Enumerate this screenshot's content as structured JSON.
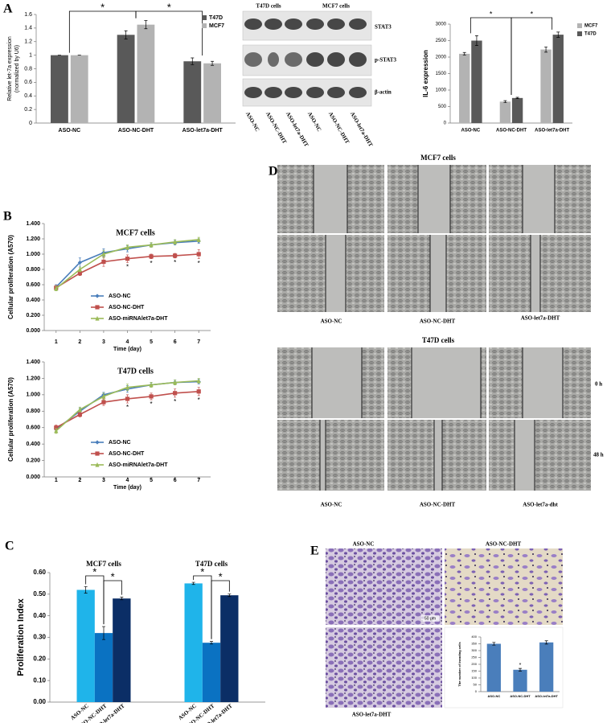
{
  "chart_data": [
    {
      "type": "bar",
      "y_label": [
        "Relative let-7a expression",
        "(normalized by U6)"
      ],
      "categories": [
        "ASO-NC",
        "ASO-NC-DHT",
        "ASO-let7a-DHT"
      ],
      "series": [
        {
          "name": "T47D",
          "color": "#595959",
          "values": [
            1,
            1.3,
            0.91
          ],
          "errors": [
            0,
            0.06,
            0.05
          ]
        },
        {
          "name": "MCF7",
          "color": "#b3b3b3",
          "values": [
            1,
            1.45,
            0.88
          ],
          "errors": [
            0,
            0.06,
            0.03
          ]
        }
      ],
      "ylim": [
        0,
        1.6
      ],
      "yticks": [
        0,
        0.2,
        0.4,
        0.6,
        0.8,
        1,
        1.2,
        1.4,
        1.6
      ],
      "legend": "upper right",
      "annotations": [
        "*",
        "*"
      ]
    },
    {
      "type": "bar",
      "y_label": "IL-6 expression",
      "categories": [
        "ASO-NC",
        "ASO-NC-DHT",
        "ASO-let7a-DHT"
      ],
      "series": [
        {
          "name": "MCF7",
          "color": "#b3b3b3",
          "values": [
            2100,
            650,
            2230
          ],
          "errors": [
            40,
            30,
            80
          ]
        },
        {
          "name": "T47D",
          "color": "#595959",
          "values": [
            2500,
            760,
            2680
          ],
          "errors": [
            150,
            20,
            80
          ]
        }
      ],
      "ylim": [
        0,
        3000
      ],
      "yticks": [
        0,
        500,
        1000,
        1500,
        2000,
        2500,
        3000
      ],
      "legend": "right",
      "annotations": [
        "*",
        "*"
      ]
    },
    {
      "type": "line",
      "title": "MCF7  cells",
      "x_label": "Time (day)",
      "y_label": "Cellular proliferation (A570)",
      "x": [
        1,
        2,
        3,
        4,
        5,
        6,
        7
      ],
      "xlim": [
        0.5,
        7.5
      ],
      "xticks": [
        1,
        2,
        3,
        4,
        5,
        6,
        7
      ],
      "series": [
        {
          "name": "ASO-NC",
          "color": "#4a7ebb",
          "marker": "diamond",
          "values": [
            0.57,
            0.89,
            1.02,
            1.07,
            1.12,
            1.15,
            1.17
          ],
          "errors": [
            0.03,
            0.06,
            0.05,
            0.04,
            0.03,
            0.03,
            0.03
          ]
        },
        {
          "name": "ASO-NC-DHT",
          "color": "#c0504d",
          "marker": "square",
          "values": [
            0.56,
            0.75,
            0.9,
            0.94,
            0.97,
            0.98,
            1.0
          ],
          "errors": [
            0.03,
            0.03,
            0.06,
            0.05,
            0.03,
            0.03,
            0.06
          ]
        },
        {
          "name": "ASO-miRNAlet7a-DHT",
          "color": "#9bbb59",
          "marker": "triangle",
          "values": [
            0.55,
            0.8,
            1.0,
            1.09,
            1.12,
            1.16,
            1.19
          ],
          "errors": [
            0.03,
            0.03,
            0.05,
            0.03,
            0.03,
            0.03,
            0.03
          ]
        }
      ],
      "ylim": [
        0,
        1.4
      ],
      "yticks": [
        {
          "value": 0,
          "label": "0.000"
        },
        {
          "value": 0.2,
          "label": "0.200"
        },
        {
          "value": 0.4,
          "label": "0.400"
        },
        {
          "value": 0.6,
          "label": "0.600"
        },
        {
          "value": 0.8,
          "label": "0.800"
        },
        {
          "value": 1,
          "label": "1.000"
        },
        {
          "value": 1.2,
          "label": "1.200"
        },
        {
          "value": 1.4,
          "label": "1.400"
        }
      ],
      "legend": "lower center",
      "annotations": [
        "*",
        "*",
        "*",
        "*"
      ]
    },
    {
      "type": "line",
      "title": "T47D    cells",
      "x_label": "Time (day)",
      "y_label": "Cellular proliferation (A570)",
      "x": [
        1,
        2,
        3,
        4,
        5,
        6,
        7
      ],
      "xlim": [
        0.5,
        7.5
      ],
      "xticks": [
        1,
        2,
        3,
        4,
        5,
        6,
        7
      ],
      "series": [
        {
          "name": "ASO-NC",
          "color": "#4a7ebb",
          "marker": "diamond",
          "values": [
            0.58,
            0.8,
            1.0,
            1.07,
            1.12,
            1.15,
            1.16
          ],
          "errors": [
            0.03,
            0.04,
            0.03,
            0.04,
            0.03,
            0.03,
            0.03
          ]
        },
        {
          "name": "ASO-NC-DHT",
          "color": "#c0504d",
          "marker": "square",
          "values": [
            0.6,
            0.76,
            0.91,
            0.95,
            0.98,
            1.02,
            1.04
          ],
          "errors": [
            0.03,
            0.03,
            0.04,
            0.05,
            0.04,
            0.05,
            0.05
          ]
        },
        {
          "name": "ASO-miRNAlet7a-DHT",
          "color": "#9bbb59",
          "marker": "triangle",
          "values": [
            0.56,
            0.82,
            0.98,
            1.09,
            1.12,
            1.15,
            1.17
          ],
          "errors": [
            0.03,
            0.03,
            0.04,
            0.04,
            0.03,
            0.03,
            0.03
          ]
        }
      ],
      "ylim": [
        0,
        1.4
      ],
      "yticks": [
        {
          "value": 0,
          "label": "0.000"
        },
        {
          "value": 0.2,
          "label": "0.200"
        },
        {
          "value": 0.4,
          "label": "0.400"
        },
        {
          "value": 0.6,
          "label": "0.600"
        },
        {
          "value": 0.8,
          "label": "0.800"
        },
        {
          "value": 1,
          "label": "1.000"
        },
        {
          "value": 1.2,
          "label": "1.200"
        },
        {
          "value": 1.4,
          "label": "1.400"
        }
      ],
      "legend": "lower center",
      "annotations": [
        "*",
        "*",
        "*",
        "*"
      ]
    },
    {
      "type": "bar",
      "y_label": "Proliferation  Index",
      "categories": [
        "MCF7 cells",
        "T47D cells"
      ],
      "series": [
        {
          "name": "ASO-NC",
          "color": "#1fb4ea",
          "values": [
            0.52,
            0.55
          ],
          "errors": [
            0.015,
            0.005
          ]
        },
        {
          "name": "ASO-NC-DHT",
          "color": "#0a72c2",
          "values": [
            0.32,
            0.275
          ],
          "errors": [
            0.03,
            0.006
          ]
        },
        {
          "name": "ASO-let7a-DHT",
          "color": "#0b2e66",
          "values": [
            0.48,
            0.495
          ],
          "errors": [
            0.006,
            0.006
          ]
        }
      ],
      "ylim": [
        0,
        0.6
      ],
      "yticks": [
        {
          "value": 0,
          "label": "0.00"
        },
        {
          "value": 0.1,
          "label": "0.10"
        },
        {
          "value": 0.2,
          "label": "0.20"
        },
        {
          "value": 0.3,
          "label": "0.30"
        },
        {
          "value": 0.4,
          "label": "0.40"
        },
        {
          "value": 0.5,
          "label": "0.50"
        },
        {
          "value": 0.6,
          "label": "0.60"
        }
      ],
      "annotations": [
        "*",
        "*",
        "*",
        "*"
      ]
    },
    {
      "type": "bar",
      "y_label": "The number of invading cells",
      "categories": [
        "ASO-NC",
        "ASO-NC-DHT",
        "ASO-let7a-DHT"
      ],
      "color": "#4a7ebb",
      "values": [
        350,
        160,
        360
      ],
      "errors": [
        10,
        10,
        12
      ],
      "ylim": [
        0,
        400
      ],
      "yticks": [
        0,
        50,
        100,
        150,
        200,
        250,
        300,
        350,
        400
      ],
      "annotations": [
        "*"
      ]
    }
  ],
  "panels": {
    "letters": [
      "A",
      "B",
      "C",
      "D",
      "E"
    ],
    "blot": {
      "groups": [
        "T47D cells",
        "MCF7 cells"
      ],
      "rows": [
        "STAT3",
        "p-STAT3",
        "β-actin"
      ],
      "lanes": [
        "ASO-NC",
        "ASO-NC-DHT",
        "ASO-let7a-DHT",
        "ASO-NC",
        "ASO-NC-DHT",
        "ASO-let7a-DHT"
      ]
    },
    "migration": {
      "groups": [
        "MCF7  cells",
        "T47D  cells"
      ],
      "columns": [
        [
          "ASO-NC",
          "ASO-NC-DHT",
          "ASO-let7a-DHT"
        ],
        [
          "ASO-NC",
          "ASO-NC-DHT",
          "ASO-let7a-dht"
        ]
      ],
      "times": [
        "0 h",
        "48 h"
      ]
    },
    "invasion": {
      "labels": [
        "ASO-NC",
        "ASO-NC-DHT",
        "ASO-let7a-DHT"
      ],
      "scale": "50 μm"
    }
  }
}
